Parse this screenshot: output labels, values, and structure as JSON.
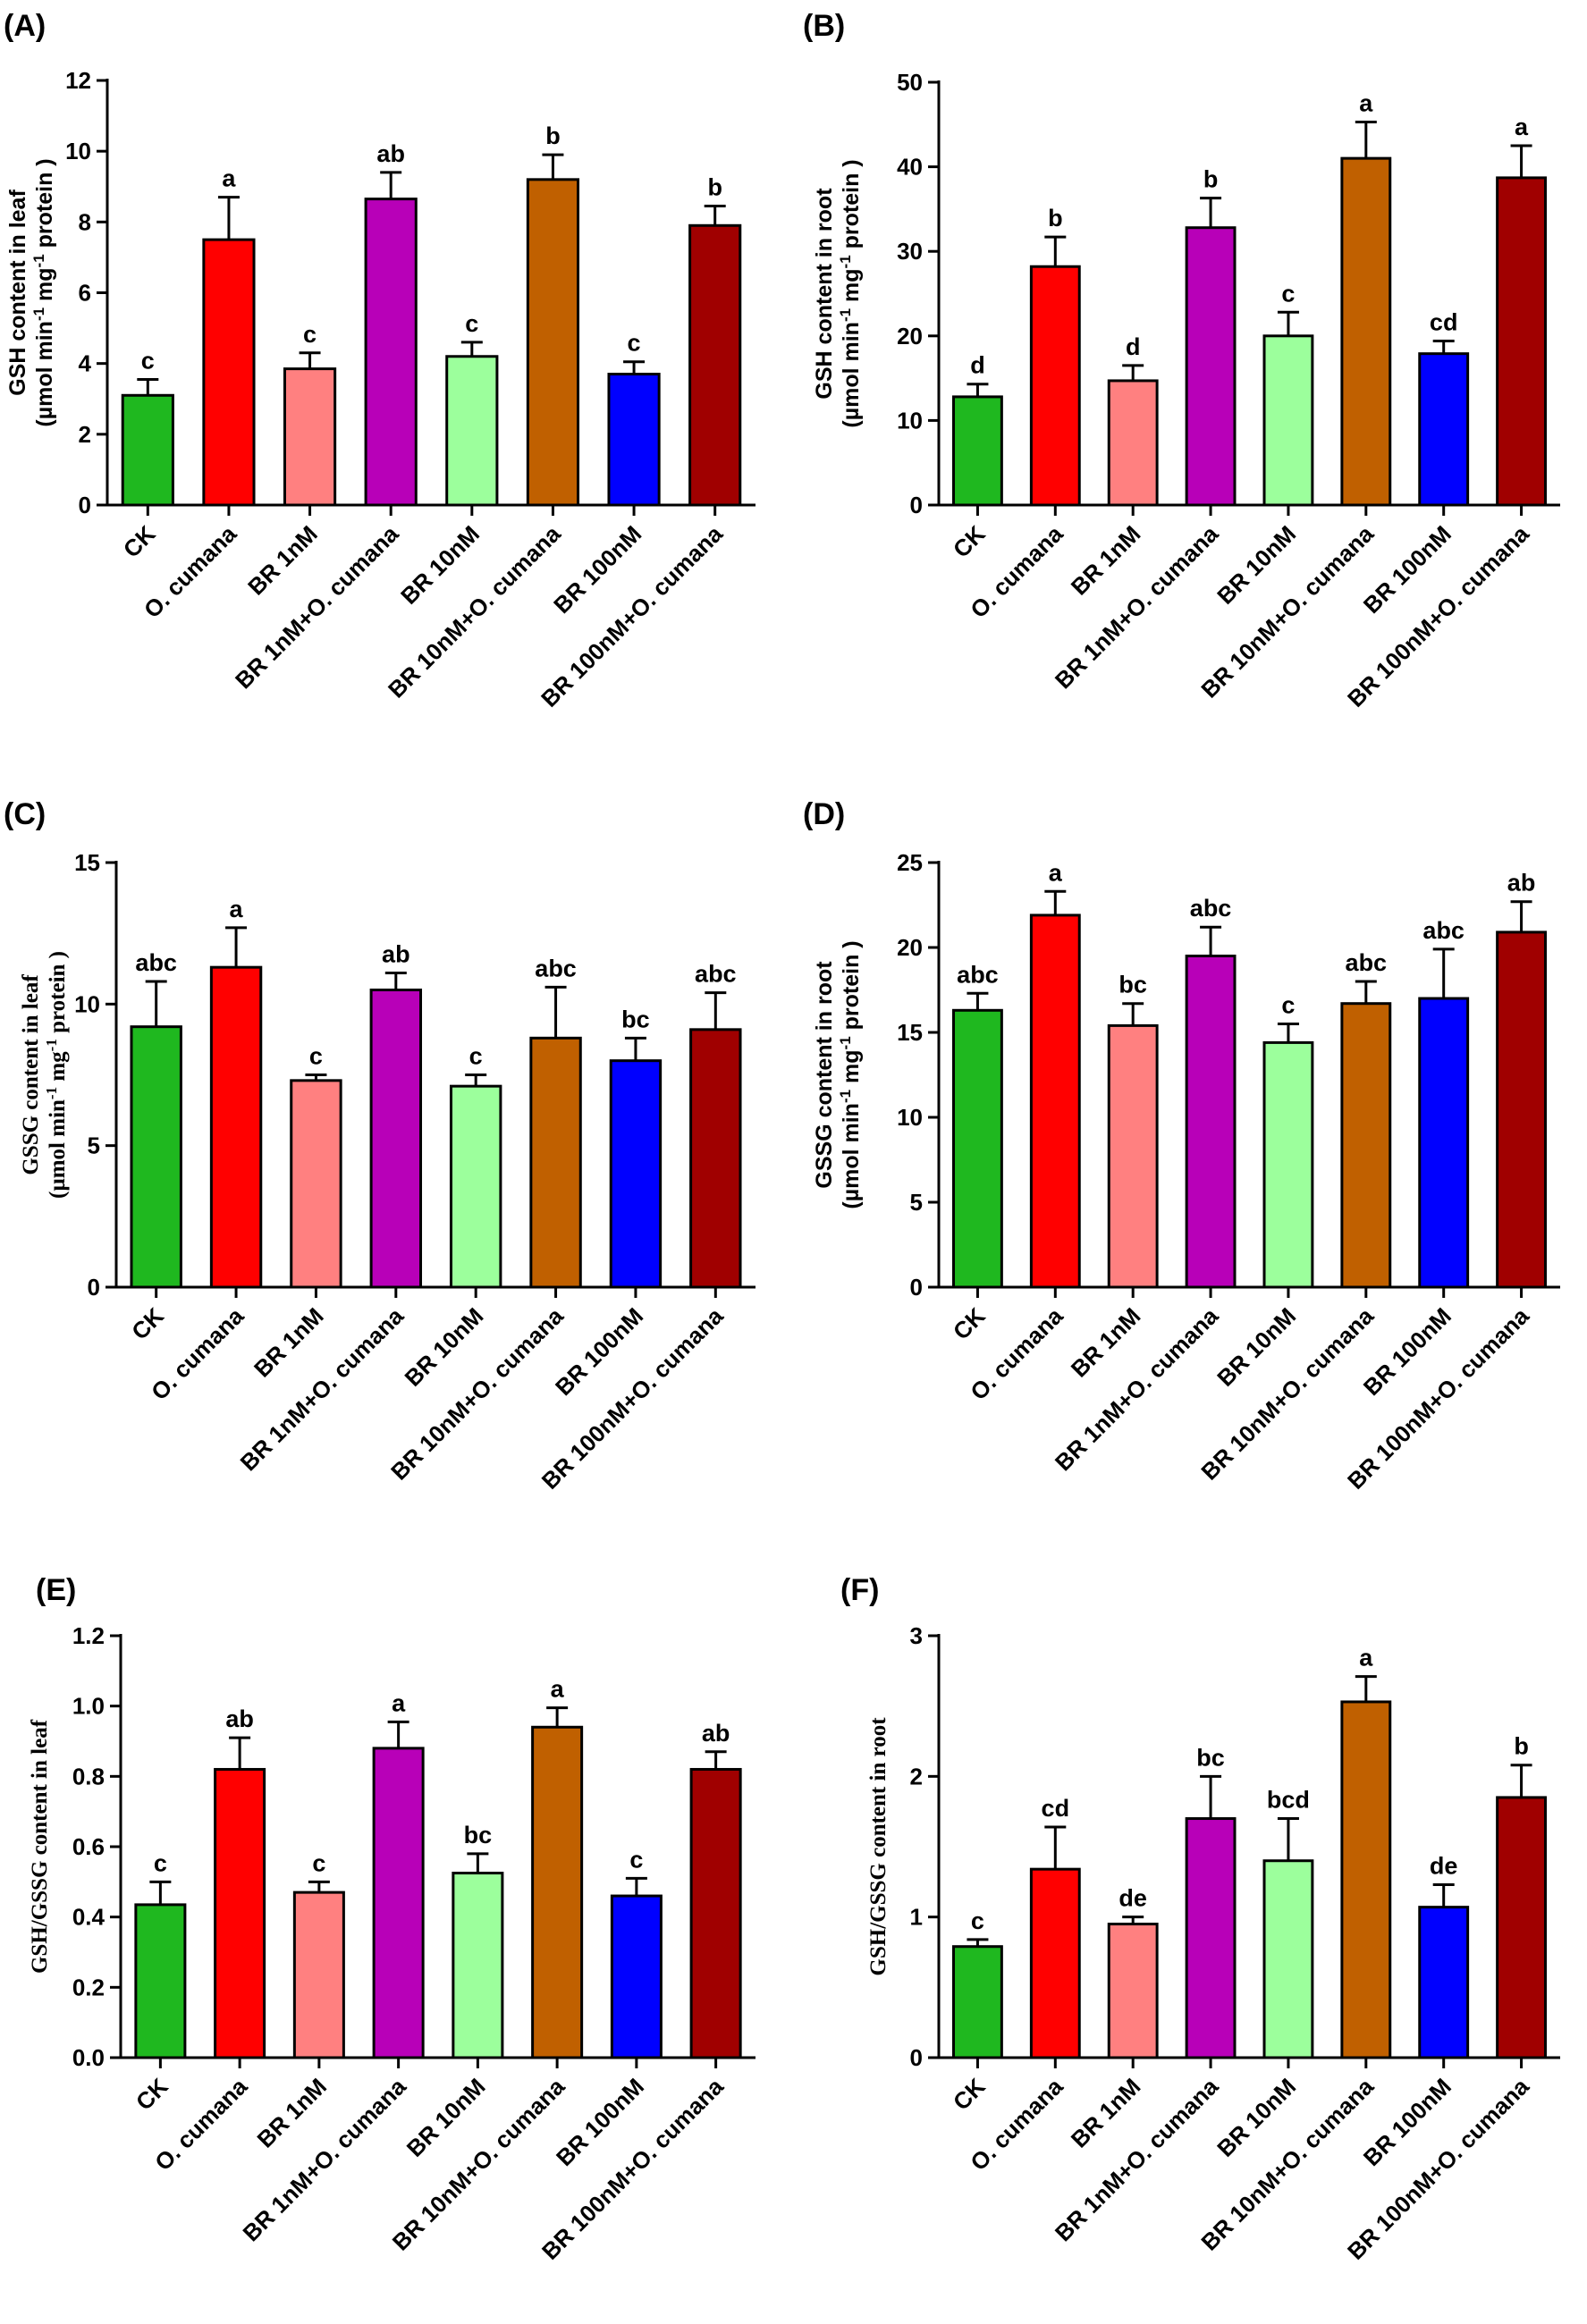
{
  "categories": [
    "CK",
    "O. cumana",
    "BR 1nM",
    "BR 1nM+O. cumana",
    "BR 10nM",
    "BR 10nM+O. cumana",
    "BR 100nM",
    "BR 100nM+O. cumana"
  ],
  "bar_colors": [
    "#1fb81f",
    "#ff0000",
    "#ff8080",
    "#b800b8",
    "#9cff9c",
    "#c06000",
    "#0000ff",
    "#a00000"
  ],
  "chart_data": [
    {
      "panel": "(A)",
      "type": "bar",
      "ylabel_line1": "GSH content in leaf",
      "ylabel_line2": "(µmol min",
      "ylabel_sup1": "-1",
      "ylabel_mid": " mg",
      "ylabel_sup2": "-1",
      "ylabel_end": " protein )",
      "ylim": [
        0,
        12
      ],
      "yticks": [
        "0",
        "2",
        "4",
        "6",
        "8",
        "10",
        "12"
      ],
      "values": [
        3.1,
        7.5,
        3.85,
        8.65,
        4.2,
        9.2,
        3.7,
        7.9
      ],
      "errors": [
        0.45,
        1.2,
        0.45,
        0.75,
        0.4,
        0.7,
        0.35,
        0.55
      ],
      "letters": [
        "c",
        "a",
        "c",
        "ab",
        "c",
        "b",
        "c",
        "b"
      ]
    },
    {
      "panel": "(B)",
      "type": "bar",
      "ylabel_line1": "GSH content in root",
      "ylabel_line2": "(µmol min",
      "ylabel_sup1": "-1",
      "ylabel_mid": " mg",
      "ylabel_sup2": "-1",
      "ylabel_end": " protein )",
      "ylim": [
        0,
        50
      ],
      "yticks": [
        "0",
        "10",
        "20",
        "30",
        "40",
        "50"
      ],
      "values": [
        12.8,
        28.2,
        14.7,
        32.8,
        20.0,
        41.0,
        17.9,
        38.7
      ],
      "errors": [
        1.5,
        3.5,
        1.8,
        3.5,
        2.8,
        4.3,
        1.5,
        3.8
      ],
      "letters": [
        "d",
        "b",
        "d",
        "b",
        "c",
        "a",
        "cd",
        "a"
      ]
    },
    {
      "panel": "(C)",
      "type": "bar",
      "ylabel_line1": "GSSG content in leaf",
      "ylabel_line2": "(µmol min",
      "ylabel_sup1": "-1",
      "ylabel_mid": " mg",
      "ylabel_sup2": "-1",
      "ylabel_end": " protein )",
      "ylim": [
        0,
        15
      ],
      "yticks": [
        "0",
        "5",
        "10",
        "15"
      ],
      "values": [
        9.2,
        11.3,
        7.3,
        10.5,
        7.1,
        8.8,
        8.0,
        9.1
      ],
      "errors": [
        1.6,
        1.4,
        0.2,
        0.6,
        0.4,
        1.8,
        0.8,
        1.3
      ],
      "letters": [
        "abc",
        "a",
        "c",
        "ab",
        "c",
        "abc",
        "bc",
        "abc"
      ]
    },
    {
      "panel": "(D)",
      "type": "bar",
      "ylabel_line1": "GSSG content in root",
      "ylabel_line2": "(µmol min",
      "ylabel_sup1": "-1",
      "ylabel_mid": " mg",
      "ylabel_sup2": "-1",
      "ylabel_end": " protein )",
      "ylim": [
        0,
        25
      ],
      "yticks": [
        "0",
        "5",
        "10",
        "15",
        "20",
        "25"
      ],
      "values": [
        16.3,
        21.9,
        15.4,
        19.5,
        14.4,
        16.7,
        17.0,
        20.9
      ],
      "errors": [
        1.0,
        1.4,
        1.3,
        1.7,
        1.1,
        1.3,
        2.9,
        1.8
      ],
      "letters": [
        "abc",
        "a",
        "bc",
        "abc",
        "c",
        "abc",
        "abc",
        "ab"
      ]
    },
    {
      "panel": "(E)",
      "type": "bar",
      "ylabel_line1": "GSH/GSSG content in leaf",
      "ylim": [
        0,
        1.2
      ],
      "yticks": [
        "0.0",
        "0.2",
        "0.4",
        "0.6",
        "0.8",
        "1.0",
        "1.2"
      ],
      "values": [
        0.435,
        0.82,
        0.47,
        0.88,
        0.525,
        0.94,
        0.46,
        0.82
      ],
      "errors": [
        0.065,
        0.09,
        0.03,
        0.075,
        0.055,
        0.055,
        0.05,
        0.05
      ],
      "letters": [
        "c",
        "ab",
        "c",
        "a",
        "bc",
        "a",
        "c",
        "ab"
      ]
    },
    {
      "panel": "(F)",
      "type": "bar",
      "ylabel_line1": "GSH/GSSG content in root",
      "ylim": [
        0,
        3
      ],
      "yticks": [
        "0",
        "1",
        "2",
        "3"
      ],
      "values": [
        0.79,
        1.34,
        0.95,
        1.7,
        1.4,
        2.53,
        1.07,
        1.85
      ],
      "errors": [
        0.05,
        0.3,
        0.05,
        0.3,
        0.3,
        0.18,
        0.16,
        0.23
      ],
      "letters": [
        "c",
        "cd",
        "de",
        "bc",
        "bcd",
        "a",
        "de",
        "b"
      ]
    }
  ]
}
